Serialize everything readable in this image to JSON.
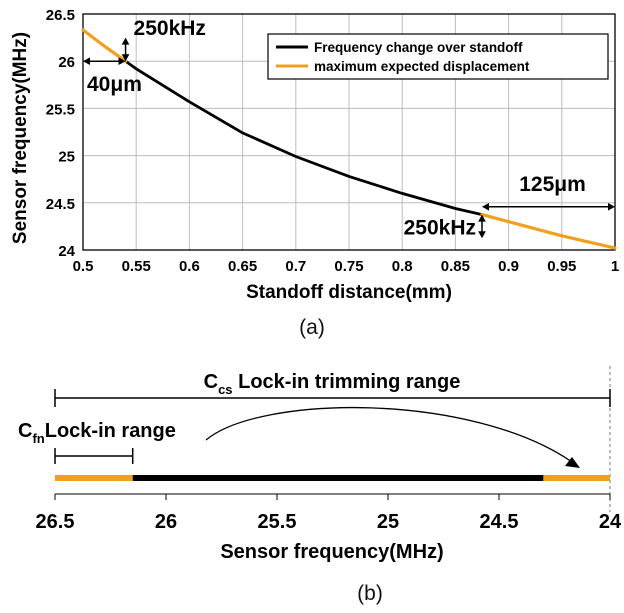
{
  "chart_data": [
    {
      "type": "line",
      "xlabel": "Standoff distance(mm)",
      "ylabel": "Sensor frequency(MHz)",
      "xlim": [
        0.5,
        1.0
      ],
      "ylim": [
        24,
        26.5
      ],
      "xticks": [
        "0.5",
        "0.55",
        "0.6",
        "0.65",
        "0.7",
        "0.75",
        "0.8",
        "0.85",
        "0.9",
        "0.95",
        "1"
      ],
      "yticks": [
        "24",
        "24.5",
        "25",
        "25.5",
        "26",
        "26.5"
      ],
      "grid": true,
      "legend_position": "top-right",
      "series": [
        {
          "name": "Frequency change over standoff",
          "color": "#000000",
          "x": [
            0.54,
            0.55,
            0.6,
            0.65,
            0.7,
            0.75,
            0.8,
            0.85,
            0.875
          ],
          "y": [
            26.0,
            25.92,
            25.57,
            25.24,
            24.99,
            24.78,
            24.6,
            24.44,
            24.375
          ]
        },
        {
          "name": "maximum expected displacement",
          "color": "#f0a020",
          "segments": [
            {
              "x": [
                0.5,
                0.52,
                0.54
              ],
              "y": [
                26.33,
                26.16,
                26.0
              ]
            },
            {
              "x": [
                0.875,
                0.9,
                0.95,
                1.0
              ],
              "y": [
                24.375,
                24.3,
                24.15,
                24.02
              ]
            }
          ]
        }
      ],
      "annotations": [
        {
          "text": "250kHz",
          "at_x": 0.54,
          "y_from": 26.0,
          "y_to": 26.25
        },
        {
          "text": "40μm",
          "x_from": 0.5,
          "x_to": 0.54,
          "at_y": 26.0
        },
        {
          "text": "125μm",
          "x_from": 0.875,
          "x_to": 1.0,
          "at_y": 24.5
        },
        {
          "text": "250kHz",
          "at_x": 0.875,
          "y_from": 24.125,
          "y_to": 24.375
        }
      ],
      "caption": "(a)"
    },
    {
      "type": "range-bar",
      "xlabel": "Sensor frequency(MHz)",
      "xlim": [
        26.5,
        24
      ],
      "xticks": [
        "26.5",
        "26",
        "25.5",
        "25",
        "24.5",
        "24"
      ],
      "segments": [
        {
          "from": 26.5,
          "to": 26.15,
          "color": "#f0a020"
        },
        {
          "from": 26.15,
          "to": 24.3,
          "color": "#000000"
        },
        {
          "from": 24.3,
          "to": 24.0,
          "color": "#f0a020"
        }
      ],
      "ranges": [
        {
          "label_main": "C",
          "label_sub": "cs",
          "label_rest": " Lock-in trimming range",
          "from": 26.5,
          "to": 24.0
        },
        {
          "label_main": "C",
          "label_sub": "fn",
          "label_rest": "Lock-in range",
          "from": 26.5,
          "to": 26.15
        }
      ],
      "caption": "(b)"
    }
  ]
}
